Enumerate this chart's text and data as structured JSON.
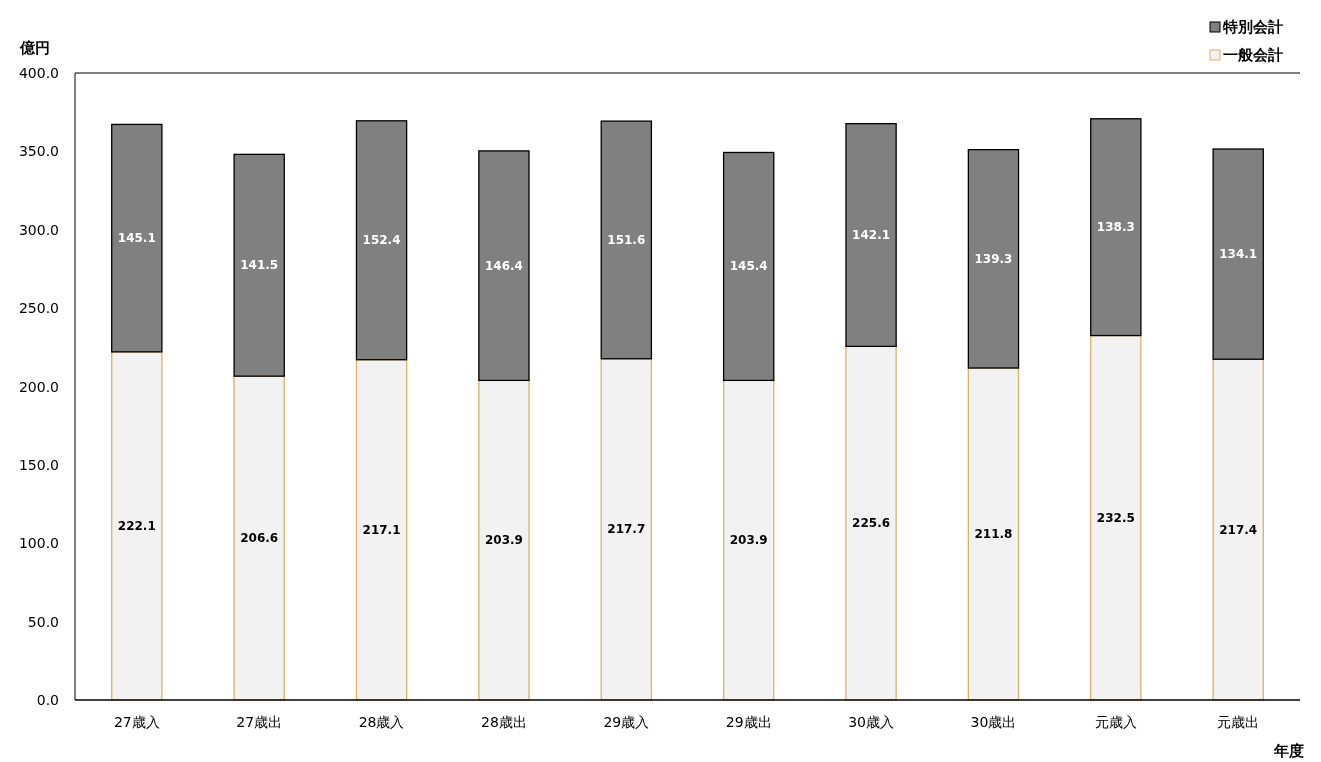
{
  "chart_data": {
    "type": "bar",
    "stacked": true,
    "ylabel": "億円",
    "xlabel": "年度",
    "categories": [
      "27歳入",
      "27歳出",
      "28歳入",
      "28歳出",
      "29歳入",
      "29歳出",
      "30歳入",
      "30歳出",
      "元歳入",
      "元歳出"
    ],
    "series": [
      {
        "name": "一般会計",
        "color": "#f2f2f2",
        "values": [
          222.1,
          206.6,
          217.1,
          203.9,
          217.7,
          203.9,
          225.6,
          211.8,
          232.5,
          217.4
        ]
      },
      {
        "name": "特別会計",
        "color": "#808080",
        "values": [
          145.1,
          141.5,
          152.4,
          146.4,
          151.6,
          145.4,
          142.1,
          139.3,
          138.3,
          134.1
        ]
      }
    ],
    "ylim": [
      0,
      400
    ],
    "yticks": [
      {
        "value": 0,
        "label": "0.0"
      },
      {
        "value": 50,
        "label": "50.0"
      },
      {
        "value": 100,
        "label": "100.0"
      },
      {
        "value": 150,
        "label": "150.0"
      },
      {
        "value": 200,
        "label": "200.0"
      },
      {
        "value": 250,
        "label": "250.0"
      },
      {
        "value": 300,
        "label": "300.0"
      },
      {
        "value": 350,
        "label": "350.0"
      },
      {
        "value": 400,
        "label": "400.0"
      }
    ],
    "data_labels": true,
    "legend": "top right",
    "grid": false
  }
}
